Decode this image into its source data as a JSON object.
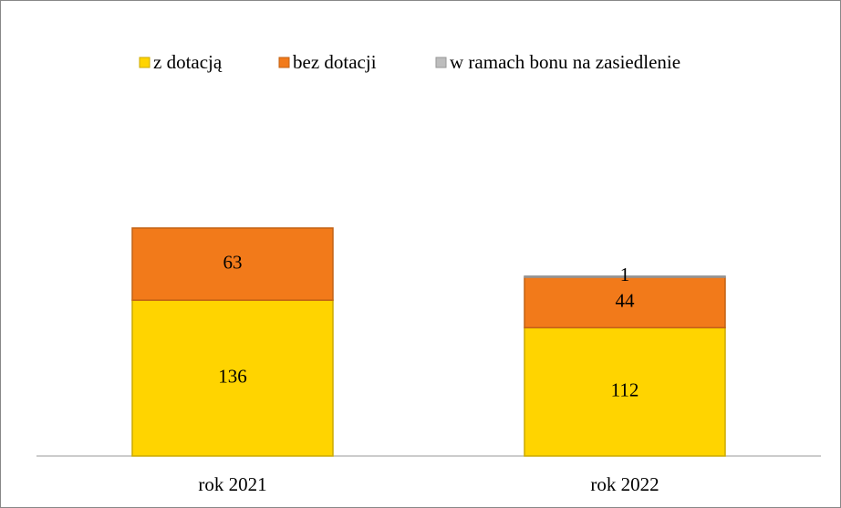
{
  "chart_data": {
    "type": "stacked_bar",
    "categories": [
      "rok 2021",
      "rok 2022"
    ],
    "series": [
      {
        "name": "z dotacją",
        "color": "#ffd400",
        "values": [
          136,
          112
        ]
      },
      {
        "name": "bez dotacji",
        "color": "#f27a1a",
        "values": [
          63,
          44
        ]
      },
      {
        "name": "w ramach bonu na zasiedlenie",
        "color": "#bdbdbd",
        "values": [
          null,
          1
        ]
      }
    ],
    "legend": "top"
  }
}
